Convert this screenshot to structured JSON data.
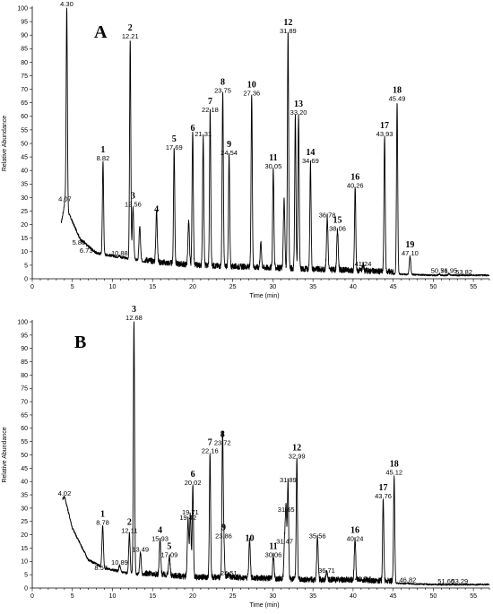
{
  "chart_data": [
    {
      "panel": "A",
      "type": "line",
      "xlabel": "Time (min)",
      "ylabel": "Relative Abundance",
      "xlim": [
        0,
        57
      ],
      "ylim": [
        0,
        100
      ],
      "xticks": [
        0,
        5,
        10,
        15,
        20,
        25,
        30,
        35,
        40,
        45,
        50,
        55
      ],
      "yticks": [
        0,
        5,
        10,
        15,
        20,
        25,
        30,
        35,
        40,
        45,
        50,
        55,
        60,
        65,
        70,
        75,
        80,
        85,
        90,
        95,
        100
      ],
      "baseline": [
        [
          3.6,
          20
        ],
        [
          4.05,
          27
        ],
        [
          6,
          14
        ],
        [
          8,
          9
        ],
        [
          12,
          7
        ],
        [
          16,
          5
        ],
        [
          20,
          4
        ],
        [
          25,
          3.5
        ],
        [
          30,
          3
        ],
        [
          35,
          2.5
        ],
        [
          40,
          2
        ],
        [
          45,
          1.5
        ],
        [
          50,
          1
        ],
        [
          57,
          1
        ]
      ],
      "peaks": [
        {
          "rt": 4.07,
          "height": 28,
          "rt_label": "4.07",
          "peak_number": ""
        },
        {
          "rt": 4.3,
          "height": 100,
          "rt_label": "4.30",
          "peak_number": ""
        },
        {
          "rt": 5.8,
          "height": 12,
          "rt_label": "5.80",
          "peak_number": ""
        },
        {
          "rt": 6.73,
          "height": 9,
          "rt_label": "6.73",
          "peak_number": ""
        },
        {
          "rt": 8.82,
          "height": 43,
          "rt_label": "8.82",
          "peak_number": "1"
        },
        {
          "rt": 10.88,
          "height": 8,
          "rt_label": "10.88",
          "peak_number": ""
        },
        {
          "rt": 12.21,
          "height": 88,
          "rt_label": "12.21",
          "peak_number": "2"
        },
        {
          "rt": 12.56,
          "height": 26,
          "rt_label": "12.56",
          "peak_number": "3"
        },
        {
          "rt": 13.4,
          "height": 19,
          "rt_label": "",
          "peak_number": ""
        },
        {
          "rt": 15.5,
          "height": 24,
          "rt_label": "",
          "peak_number": "4"
        },
        {
          "rt": 17.69,
          "height": 47,
          "rt_label": "17.69",
          "peak_number": "5"
        },
        {
          "rt": 19.5,
          "height": 20,
          "rt_label": "",
          "peak_number": ""
        },
        {
          "rt": 20.0,
          "height": 54,
          "rt_label": "",
          "peak_number": "6"
        },
        {
          "rt": 21.31,
          "height": 52,
          "rt_label": "21.31",
          "peak_number": ""
        },
        {
          "rt": 22.18,
          "height": 61,
          "rt_label": "22.18",
          "peak_number": "7"
        },
        {
          "rt": 23.75,
          "height": 68,
          "rt_label": "23.75",
          "peak_number": "8"
        },
        {
          "rt": 24.54,
          "height": 45,
          "rt_label": "24.54",
          "peak_number": "9"
        },
        {
          "rt": 27.36,
          "height": 67,
          "rt_label": "27.36",
          "peak_number": "10"
        },
        {
          "rt": 28.5,
          "height": 12,
          "rt_label": "",
          "peak_number": ""
        },
        {
          "rt": 30.05,
          "height": 40,
          "rt_label": "30.05",
          "peak_number": "11"
        },
        {
          "rt": 31.4,
          "height": 28,
          "rt_label": "",
          "peak_number": ""
        },
        {
          "rt": 31.89,
          "height": 90,
          "rt_label": "31.89",
          "peak_number": "12"
        },
        {
          "rt": 32.8,
          "height": 59,
          "rt_label": "",
          "peak_number": ""
        },
        {
          "rt": 33.2,
          "height": 60,
          "rt_label": "33.20",
          "peak_number": "13"
        },
        {
          "rt": 34.69,
          "height": 42,
          "rt_label": "34.69",
          "peak_number": "14"
        },
        {
          "rt": 36.78,
          "height": 22,
          "rt_label": "36.78",
          "peak_number": ""
        },
        {
          "rt": 38.06,
          "height": 17,
          "rt_label": "38.06",
          "peak_number": "15"
        },
        {
          "rt": 40.26,
          "height": 33,
          "rt_label": "40.26",
          "peak_number": "16"
        },
        {
          "rt": 41.24,
          "height": 4,
          "rt_label": "41.24",
          "peak_number": ""
        },
        {
          "rt": 43.93,
          "height": 52,
          "rt_label": "43.93",
          "peak_number": "17"
        },
        {
          "rt": 45.49,
          "height": 65,
          "rt_label": "45.49",
          "peak_number": "18"
        },
        {
          "rt": 47.1,
          "height": 8,
          "rt_label": "47.10",
          "peak_number": "19"
        },
        {
          "rt": 50.76,
          "height": 1.5,
          "rt_label": "50.76",
          "peak_number": ""
        },
        {
          "rt": 51.95,
          "height": 1.5,
          "rt_label": "51.95",
          "peak_number": ""
        },
        {
          "rt": 53.82,
          "height": 1,
          "rt_label": "53.82",
          "peak_number": ""
        }
      ]
    },
    {
      "panel": "B",
      "type": "line",
      "xlabel": "Time (min)",
      "ylabel": "Relative Abundance",
      "xlim": [
        0,
        57
      ],
      "ylim": [
        0,
        100
      ],
      "xticks": [
        0,
        5,
        10,
        15,
        20,
        25,
        30,
        35,
        40,
        45,
        50,
        55
      ],
      "yticks": [
        0,
        5,
        10,
        15,
        20,
        25,
        30,
        35,
        40,
        45,
        50,
        55,
        60,
        65,
        70,
        75,
        80,
        85,
        90,
        95,
        100
      ],
      "baseline": [
        [
          3.8,
          33
        ],
        [
          4.02,
          34
        ],
        [
          5,
          22
        ],
        [
          7,
          10
        ],
        [
          9,
          7
        ],
        [
          12,
          5
        ],
        [
          16,
          4
        ],
        [
          20,
          3
        ],
        [
          25,
          3
        ],
        [
          30,
          2.5
        ],
        [
          35,
          2
        ],
        [
          40,
          2
        ],
        [
          45,
          1.5
        ],
        [
          50,
          1
        ],
        [
          57,
          1
        ]
      ],
      "peaks": [
        {
          "rt": 4.02,
          "height": 34,
          "rt_label": "4.02",
          "peak_number": ""
        },
        {
          "rt": 8.57,
          "height": 6,
          "rt_label": "8.57",
          "peak_number": ""
        },
        {
          "rt": 8.78,
          "height": 23,
          "rt_label": "8.78",
          "peak_number": "1"
        },
        {
          "rt": 10.89,
          "height": 8,
          "rt_label": "10.89",
          "peak_number": ""
        },
        {
          "rt": 12.11,
          "height": 20,
          "rt_label": "12.11",
          "peak_number": "2"
        },
        {
          "rt": 12.68,
          "height": 100,
          "rt_label": "12.68",
          "peak_number": "3"
        },
        {
          "rt": 13.49,
          "height": 13,
          "rt_label": "13.49",
          "peak_number": ""
        },
        {
          "rt": 15.93,
          "height": 17,
          "rt_label": "15.93",
          "peak_number": "4"
        },
        {
          "rt": 17.09,
          "height": 11,
          "rt_label": "17.09",
          "peak_number": "5"
        },
        {
          "rt": 19.42,
          "height": 25,
          "rt_label": "19.42",
          "peak_number": ""
        },
        {
          "rt": 19.71,
          "height": 27,
          "rt_label": "19.71",
          "peak_number": ""
        },
        {
          "rt": 20.02,
          "height": 38,
          "rt_label": "20.02",
          "peak_number": "6"
        },
        {
          "rt": 22.16,
          "height": 50,
          "rt_label": "22.16",
          "peak_number": "7"
        },
        {
          "rt": 23.72,
          "height": 53,
          "rt_label": "23.72",
          "peak_number": "8"
        },
        {
          "rt": 23.86,
          "height": 18,
          "rt_label": "23.86",
          "peak_number": "9"
        },
        {
          "rt": 24.51,
          "height": 4,
          "rt_label": "24.51",
          "peak_number": ""
        },
        {
          "rt": 27.1,
          "height": 17,
          "rt_label": "",
          "peak_number": "10"
        },
        {
          "rt": 30.06,
          "height": 11,
          "rt_label": "30.06",
          "peak_number": "11"
        },
        {
          "rt": 31.47,
          "height": 16,
          "rt_label": "31.47",
          "peak_number": ""
        },
        {
          "rt": 31.65,
          "height": 28,
          "rt_label": "31.65",
          "peak_number": ""
        },
        {
          "rt": 31.89,
          "height": 39,
          "rt_label": "31.89",
          "peak_number": ""
        },
        {
          "rt": 32.99,
          "height": 48,
          "rt_label": "32.99",
          "peak_number": "12"
        },
        {
          "rt": 35.56,
          "height": 18,
          "rt_label": "35.56",
          "peak_number": ""
        },
        {
          "rt": 36.71,
          "height": 5,
          "rt_label": "36.71",
          "peak_number": ""
        },
        {
          "rt": 40.24,
          "height": 17,
          "rt_label": "40.24",
          "peak_number": "16"
        },
        {
          "rt": 41.24,
          "height": 2,
          "rt_label": "41.24",
          "peak_number": ""
        },
        {
          "rt": 43.76,
          "height": 33,
          "rt_label": "43.76",
          "peak_number": "17"
        },
        {
          "rt": 45.12,
          "height": 42,
          "rt_label": "45.12",
          "peak_number": "18"
        },
        {
          "rt": 46.82,
          "height": 1.5,
          "rt_label": "46.82",
          "peak_number": ""
        },
        {
          "rt": 51.6,
          "height": 1,
          "rt_label": "51.60",
          "peak_number": ""
        },
        {
          "rt": 53.29,
          "height": 1,
          "rt_label": "53.29",
          "peak_number": ""
        }
      ]
    }
  ]
}
